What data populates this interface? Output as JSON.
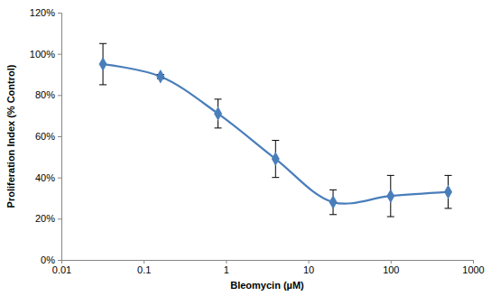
{
  "chart_data": {
    "type": "line",
    "x_label": "Bleomycin (µM)",
    "y_label": "Proliferation Index (% Control)",
    "x": [
      0.032,
      0.16,
      0.8,
      4,
      20,
      100,
      500
    ],
    "values": [
      95,
      89,
      71,
      49,
      28,
      31,
      33
    ],
    "errors": [
      10,
      1,
      7,
      9,
      6,
      10,
      8
    ],
    "color": "#4a7ebb",
    "marker": "diamond",
    "line_style": "smooth",
    "log": "x",
    "grid": false,
    "xlim": [
      0.01,
      1000
    ],
    "xticks": [
      0.01,
      0.1,
      1,
      10,
      100,
      1000
    ],
    "ylim": [
      0,
      120
    ],
    "yticks": [
      {
        "value": 0,
        "label": "0%"
      },
      {
        "value": 20,
        "label": "20%"
      },
      {
        "value": 40,
        "label": "40%"
      },
      {
        "value": 60,
        "label": "60%"
      },
      {
        "value": 80,
        "label": "80%"
      },
      {
        "value": 100,
        "label": "100%"
      },
      {
        "value": 120,
        "label": "120%"
      }
    ]
  }
}
